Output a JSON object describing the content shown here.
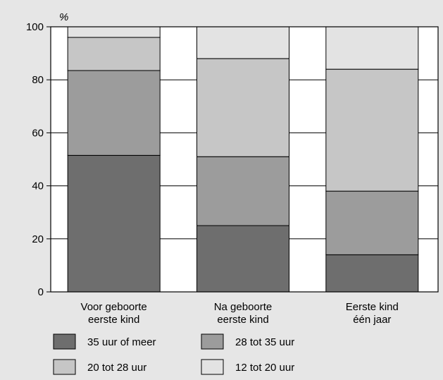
{
  "chart_data": {
    "type": "bar",
    "stacked": true,
    "title": "",
    "ylabel": "%",
    "xlabel": "",
    "ylim": [
      0,
      100
    ],
    "yticks": [
      0,
      20,
      40,
      60,
      80,
      100
    ],
    "grid": true,
    "legend_position": "bottom",
    "categories": [
      [
        "Voor geboorte",
        "eerste kind"
      ],
      [
        "Na geboorte",
        "eerste kind"
      ],
      [
        "Eerste kind",
        "één jaar"
      ]
    ],
    "series": [
      {
        "name": "35 uur of meer",
        "color": "#6e6e6e",
        "values": [
          51.5,
          25,
          14
        ]
      },
      {
        "name": "28 tot 35 uur",
        "color": "#9c9c9c",
        "values": [
          32,
          26,
          24
        ]
      },
      {
        "name": "20 tot 28 uur",
        "color": "#c6c6c6",
        "values": [
          12.5,
          37,
          46
        ]
      },
      {
        "name": "12 tot 20 uur",
        "color": "#e3e3e3",
        "values": [
          4,
          12,
          16
        ]
      }
    ]
  }
}
